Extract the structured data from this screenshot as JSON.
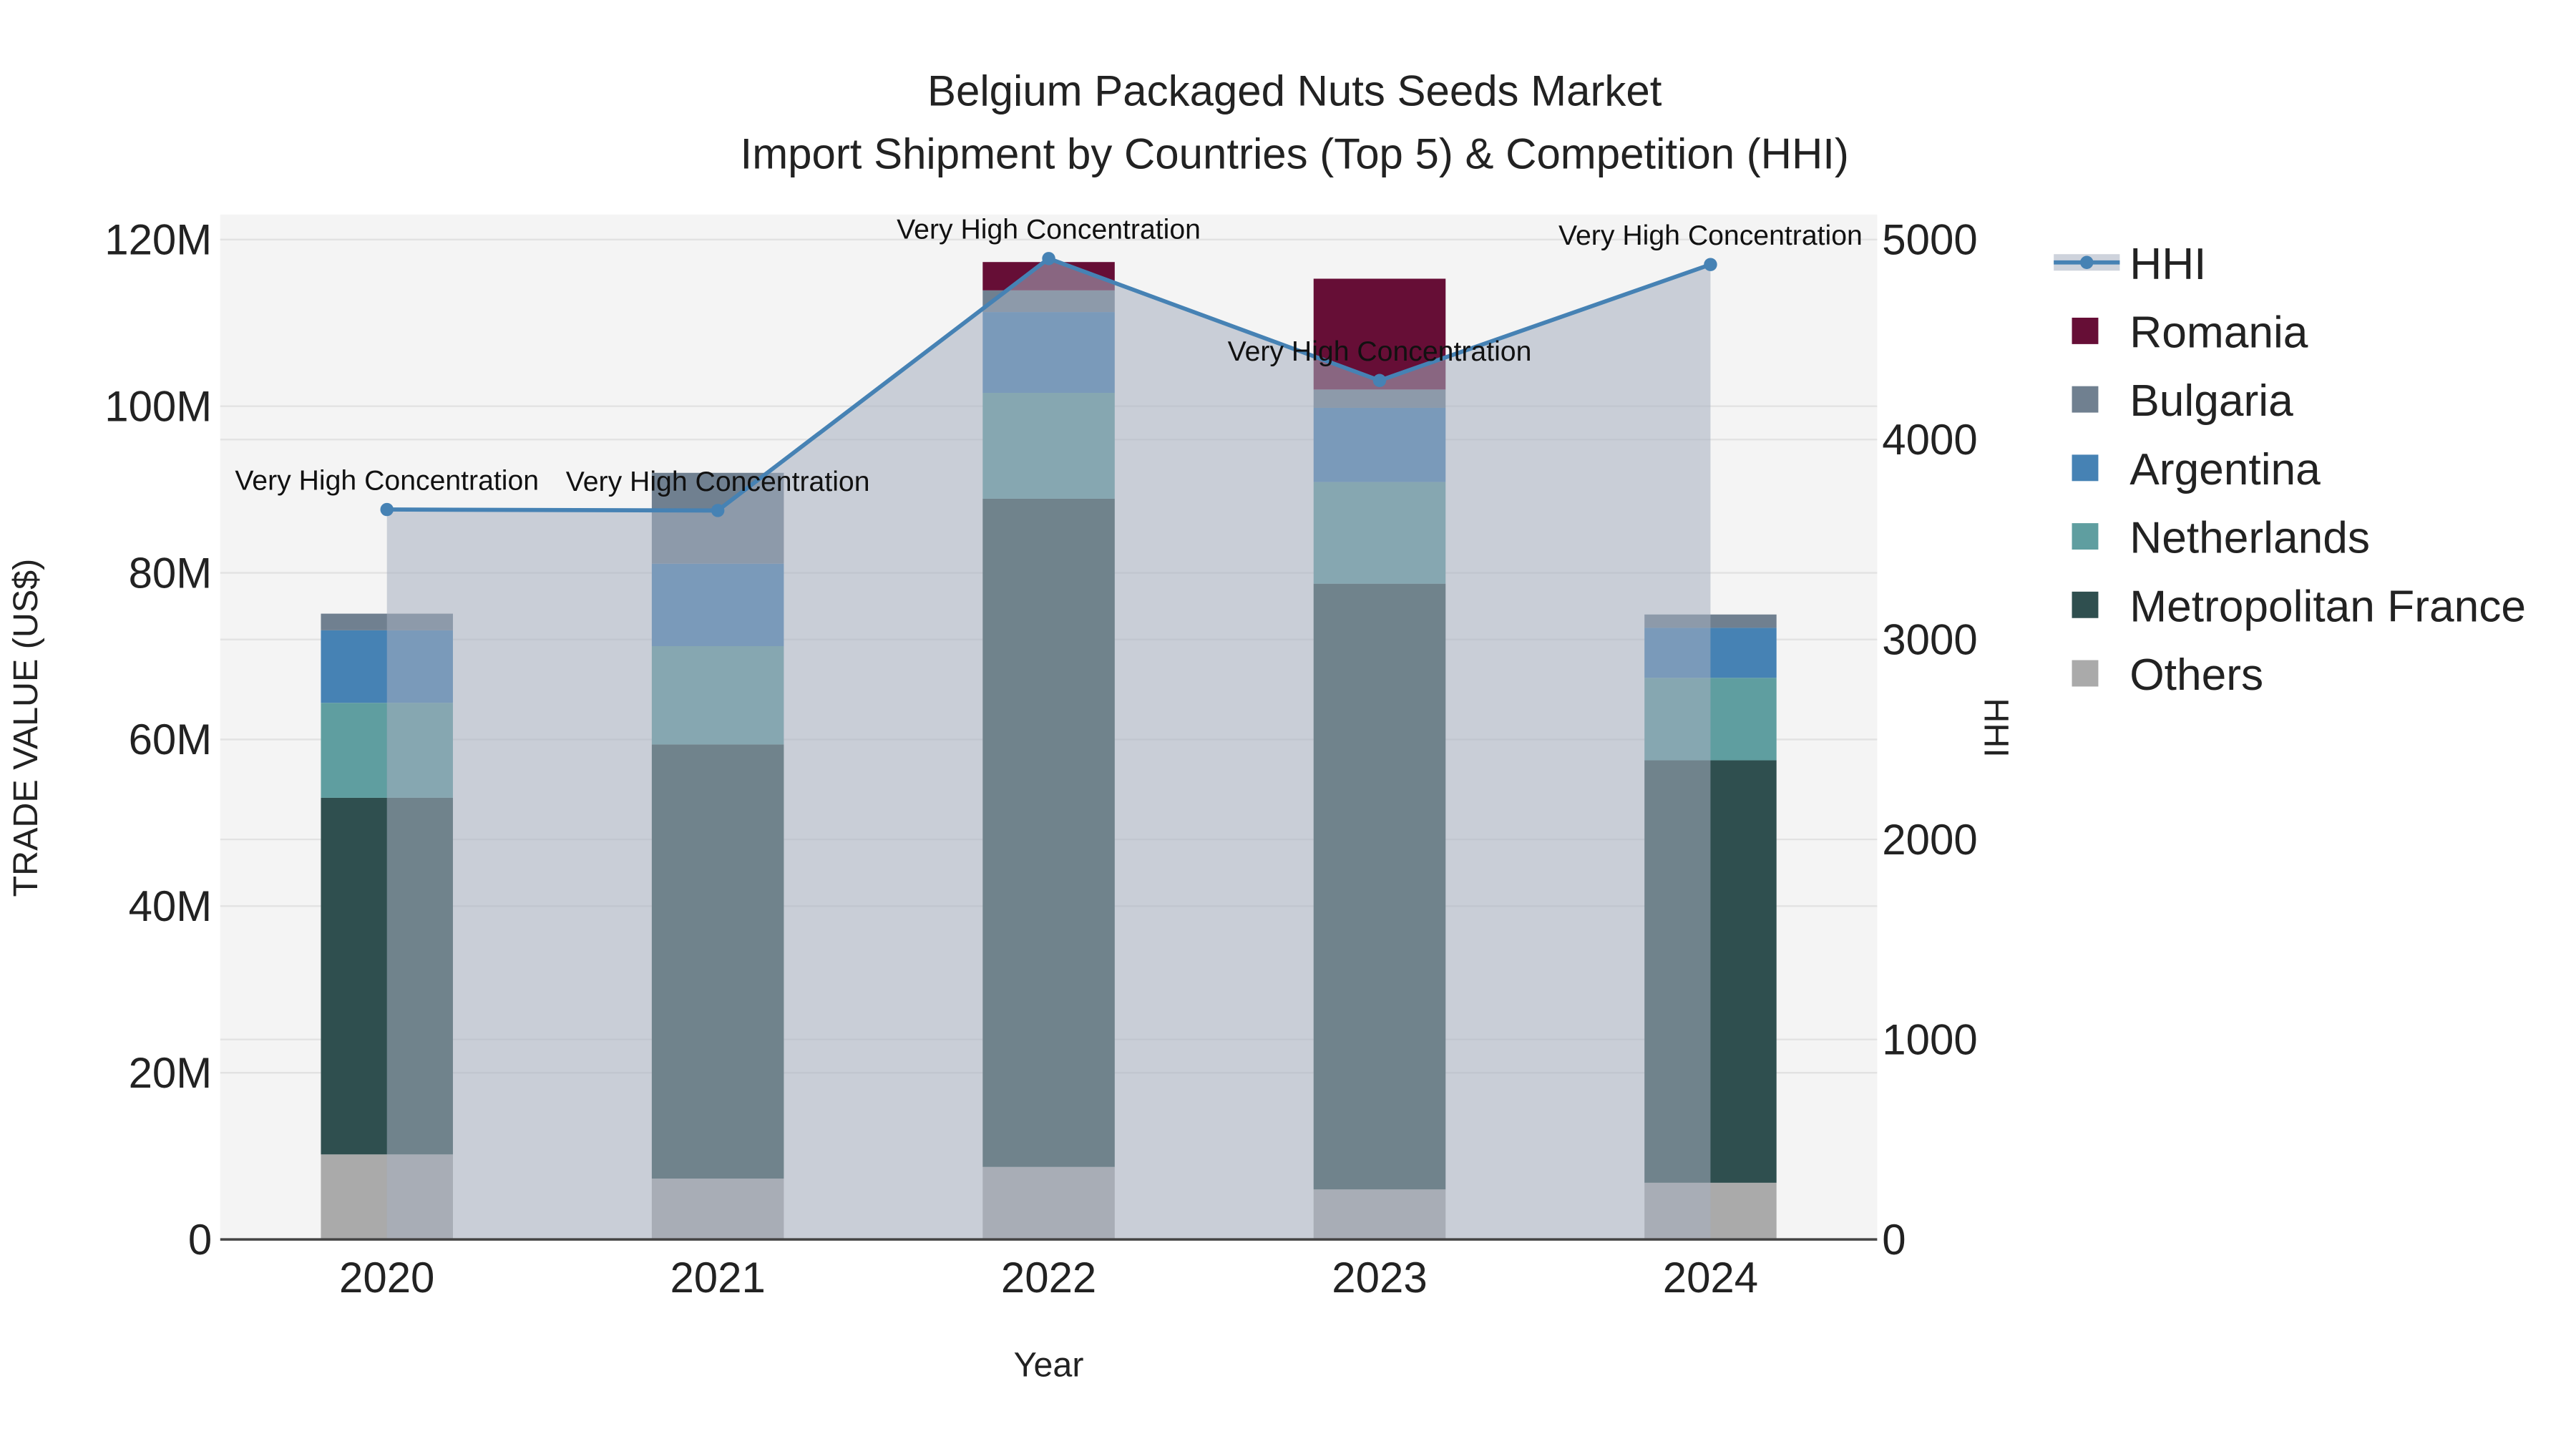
{
  "chart_data": {
    "type": "bar",
    "title": "Belgium Packaged Nuts Seeds Market",
    "subtitle": "Import Shipment by Countries (Top 5) & Competition (HHI)",
    "xlabel": "Year",
    "ylabel": "TRADE VALUE (US$)",
    "y2label": "HHI",
    "categories": [
      "2020",
      "2021",
      "2022",
      "2023",
      "2024"
    ],
    "ylim": [
      0,
      123
    ],
    "y2lim": [
      0,
      5125
    ],
    "yticks": [
      0,
      20,
      40,
      60,
      80,
      100,
      120
    ],
    "ytick_labels": [
      "0",
      "20M",
      "40M",
      "60M",
      "80M",
      "100M",
      "120M"
    ],
    "y2ticks": [
      0,
      1000,
      2000,
      3000,
      4000,
      5000
    ],
    "y2tick_labels": [
      "0",
      "1000",
      "2000",
      "3000",
      "4000",
      "5000"
    ],
    "value_unit": "M US$",
    "series": [
      {
        "name": "Others",
        "color": "#aaaaaa",
        "values": [
          10.2,
          7.3,
          8.7,
          6.0,
          6.8
        ]
      },
      {
        "name": "Metropolitan France",
        "color": "#2f4f4f",
        "values": [
          42.8,
          52.1,
          80.2,
          72.7,
          50.7
        ]
      },
      {
        "name": "Netherlands",
        "color": "#5f9ea0",
        "values": [
          11.4,
          11.8,
          12.7,
          12.2,
          9.9
        ]
      },
      {
        "name": "Argentina",
        "color": "#4682b4",
        "values": [
          8.7,
          9.9,
          9.7,
          8.9,
          6.0
        ]
      },
      {
        "name": "Bulgaria",
        "color": "#708090",
        "values": [
          2.0,
          10.9,
          2.6,
          2.2,
          1.6
        ]
      },
      {
        "name": "Romania",
        "color": "#660e36",
        "values": [
          0,
          0,
          3.4,
          13.3,
          0
        ]
      }
    ],
    "hhi": {
      "name": "HHI",
      "color": "#4682b4",
      "values": [
        3650,
        3645,
        4905,
        4295,
        4875
      ],
      "annotations": [
        "Very High Concentration",
        "Very High Concentration",
        "Very High Concentration",
        "Very High Concentration",
        "Very High Concentration"
      ]
    },
    "legend": [
      "HHI",
      "Romania",
      "Bulgaria",
      "Argentina",
      "Netherlands",
      "Metropolitan France",
      "Others"
    ],
    "legend_position": "right",
    "grid": true
  }
}
